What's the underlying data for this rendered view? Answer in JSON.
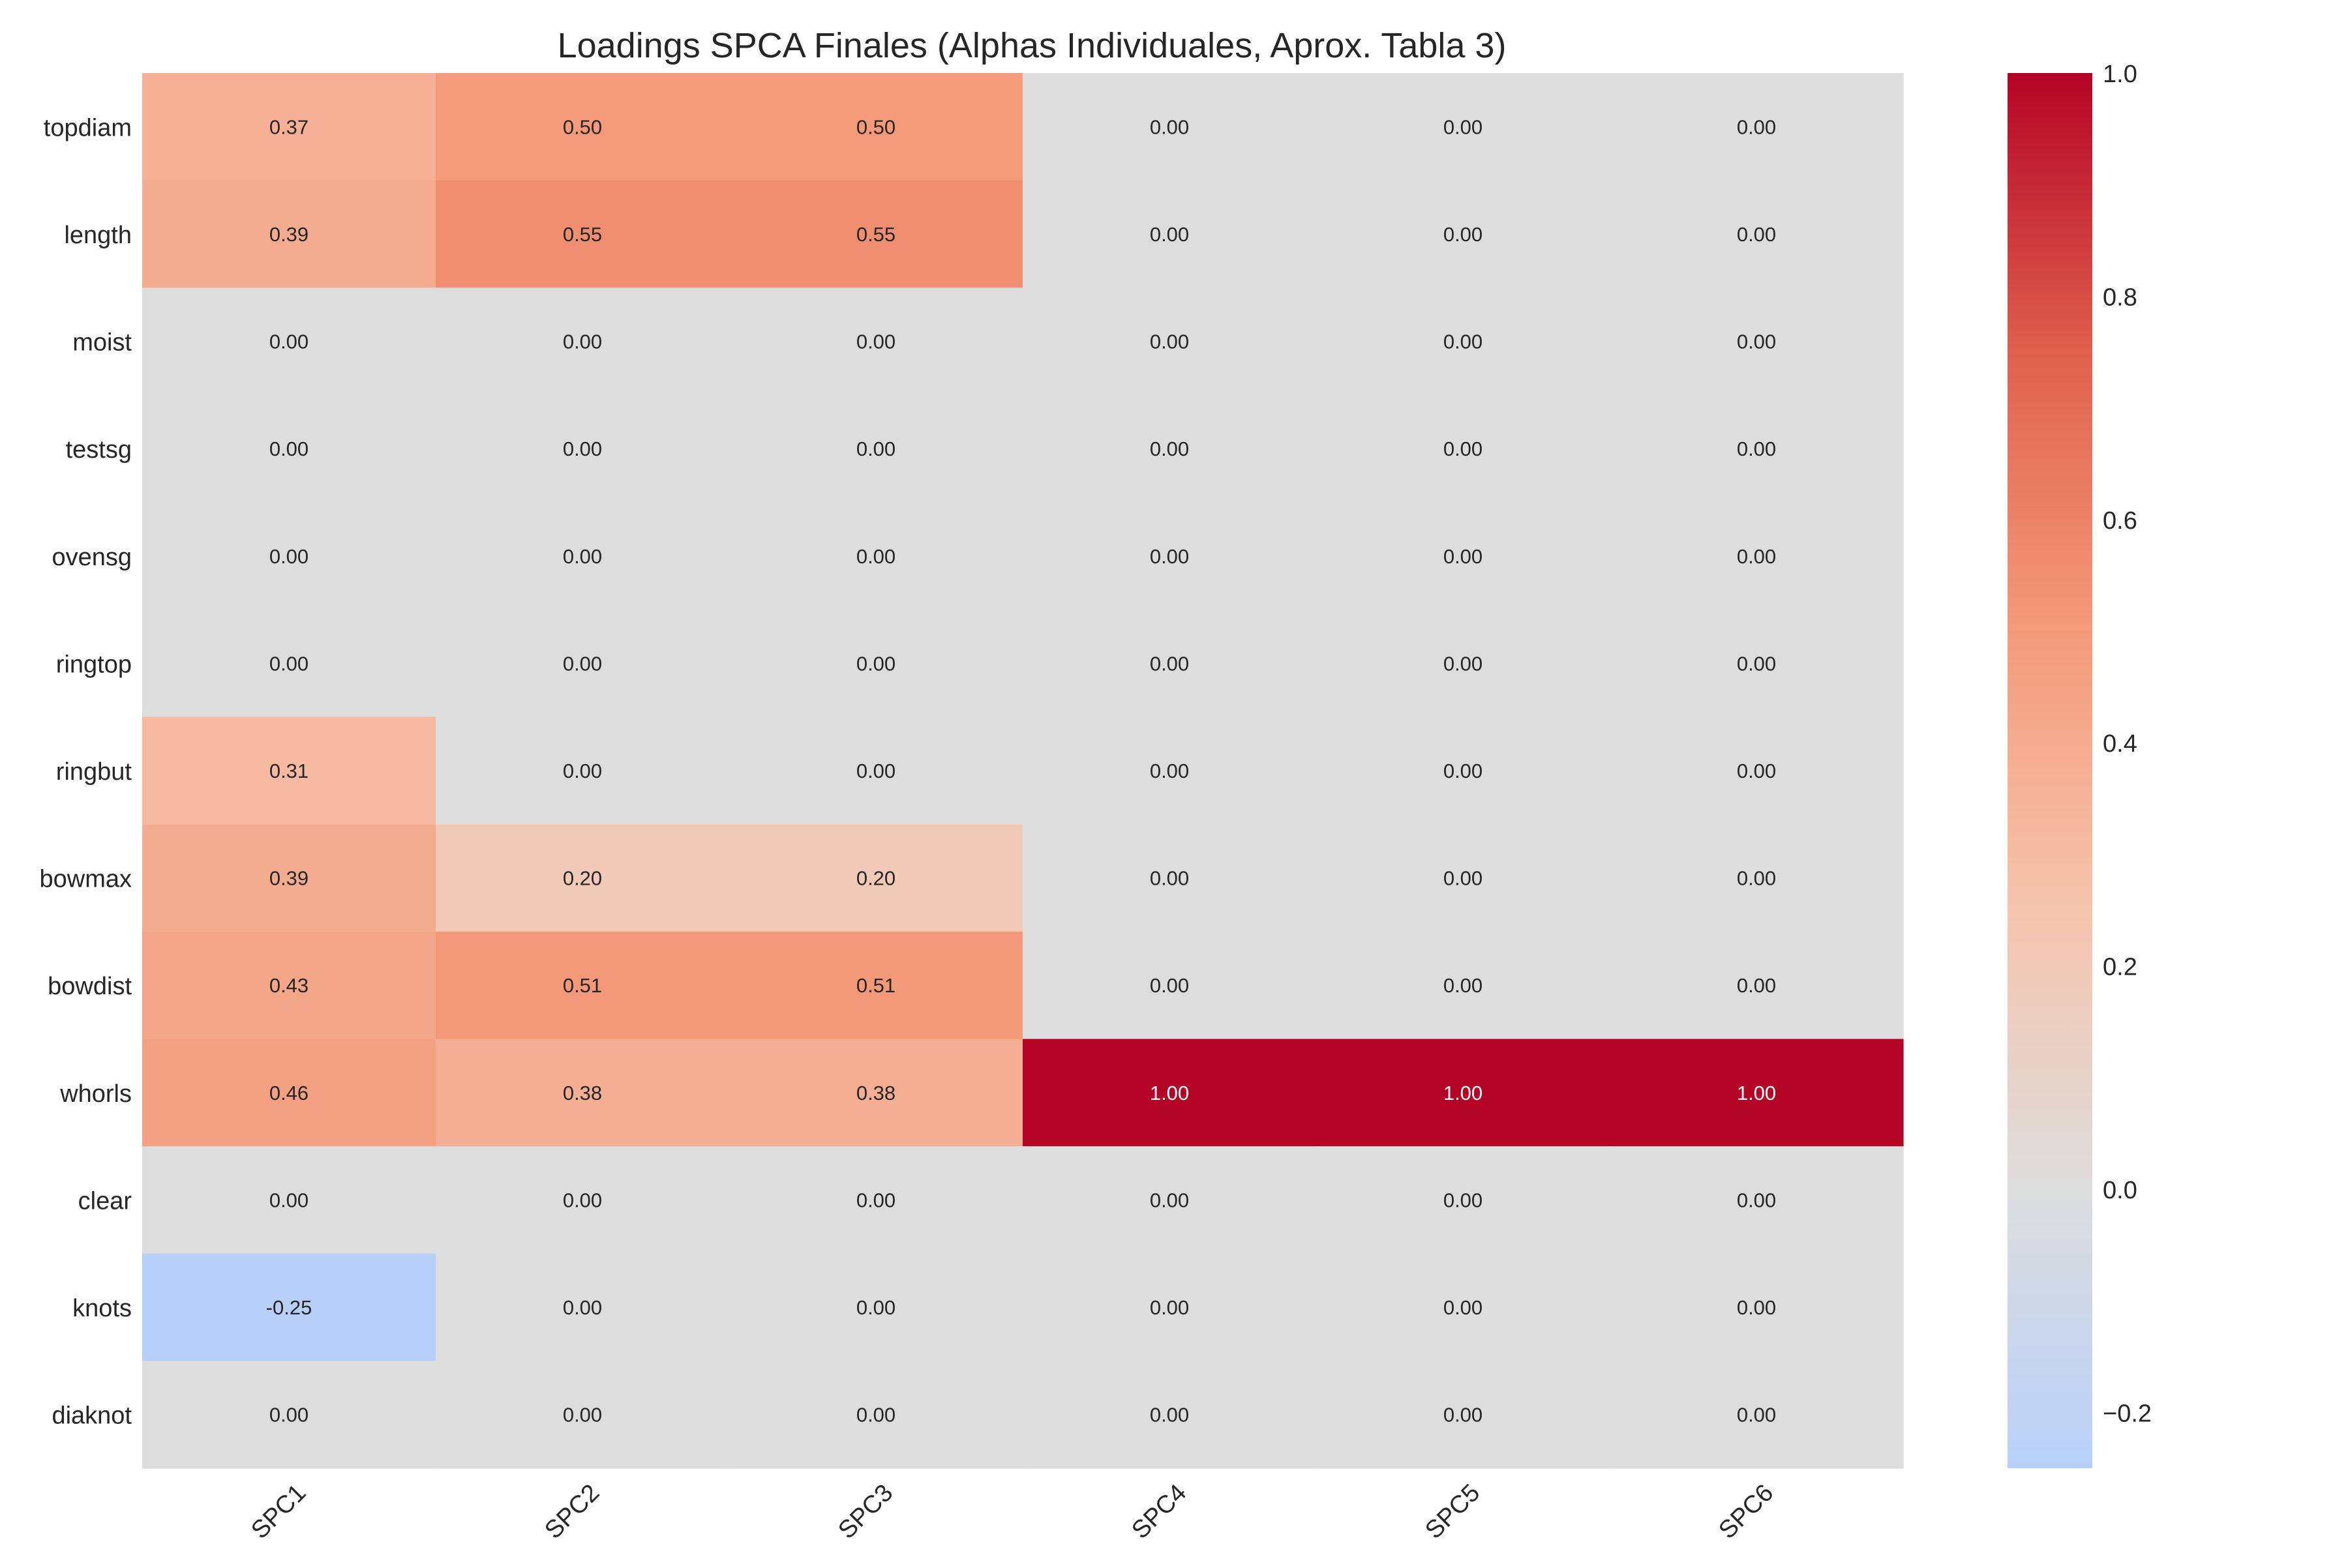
{
  "chart_data": {
    "type": "heatmap",
    "title": "Loadings SPCA Finales (Alphas Individuales, Aprox. Tabla 3)",
    "xlabel": "",
    "ylabel": "",
    "x_categories": [
      "SPC1",
      "SPC2",
      "SPC3",
      "SPC4",
      "SPC5",
      "SPC6"
    ],
    "y_categories": [
      "topdiam",
      "length",
      "moist",
      "testsg",
      "ovensg",
      "ringtop",
      "ringbut",
      "bowmax",
      "bowdist",
      "whorls",
      "clear",
      "knots",
      "diaknot"
    ],
    "values": [
      [
        0.37,
        0.5,
        0.5,
        0.0,
        0.0,
        0.0
      ],
      [
        0.39,
        0.55,
        0.55,
        0.0,
        0.0,
        0.0
      ],
      [
        0.0,
        0.0,
        0.0,
        0.0,
        0.0,
        0.0
      ],
      [
        0.0,
        0.0,
        0.0,
        0.0,
        0.0,
        0.0
      ],
      [
        0.0,
        0.0,
        0.0,
        0.0,
        0.0,
        0.0
      ],
      [
        0.0,
        0.0,
        0.0,
        0.0,
        0.0,
        0.0
      ],
      [
        0.31,
        0.0,
        0.0,
        0.0,
        0.0,
        0.0
      ],
      [
        0.39,
        0.2,
        0.2,
        0.0,
        0.0,
        0.0
      ],
      [
        0.43,
        0.51,
        0.51,
        0.0,
        0.0,
        0.0
      ],
      [
        0.46,
        0.38,
        0.38,
        1.0,
        1.0,
        1.0
      ],
      [
        0.0,
        0.0,
        0.0,
        0.0,
        0.0,
        0.0
      ],
      [
        -0.25,
        0.0,
        0.0,
        0.0,
        0.0,
        0.0
      ],
      [
        0.0,
        0.0,
        0.0,
        0.0,
        0.0,
        0.0
      ]
    ],
    "value_format": "0.00",
    "colormap": "coolwarm",
    "vmin": -0.25,
    "vmax": 1.0,
    "center": 0.0,
    "colorbar_ticks": [
      -0.2,
      0.0,
      0.2,
      0.4,
      0.6,
      0.8,
      1.0
    ],
    "colorbar_tick_labels": [
      "−0.2",
      "0.0",
      "0.2",
      "0.4",
      "0.6",
      "0.8",
      "1.0"
    ],
    "x_tick_rotation_deg": 45,
    "grid": false,
    "legend": "colorbar-right"
  }
}
